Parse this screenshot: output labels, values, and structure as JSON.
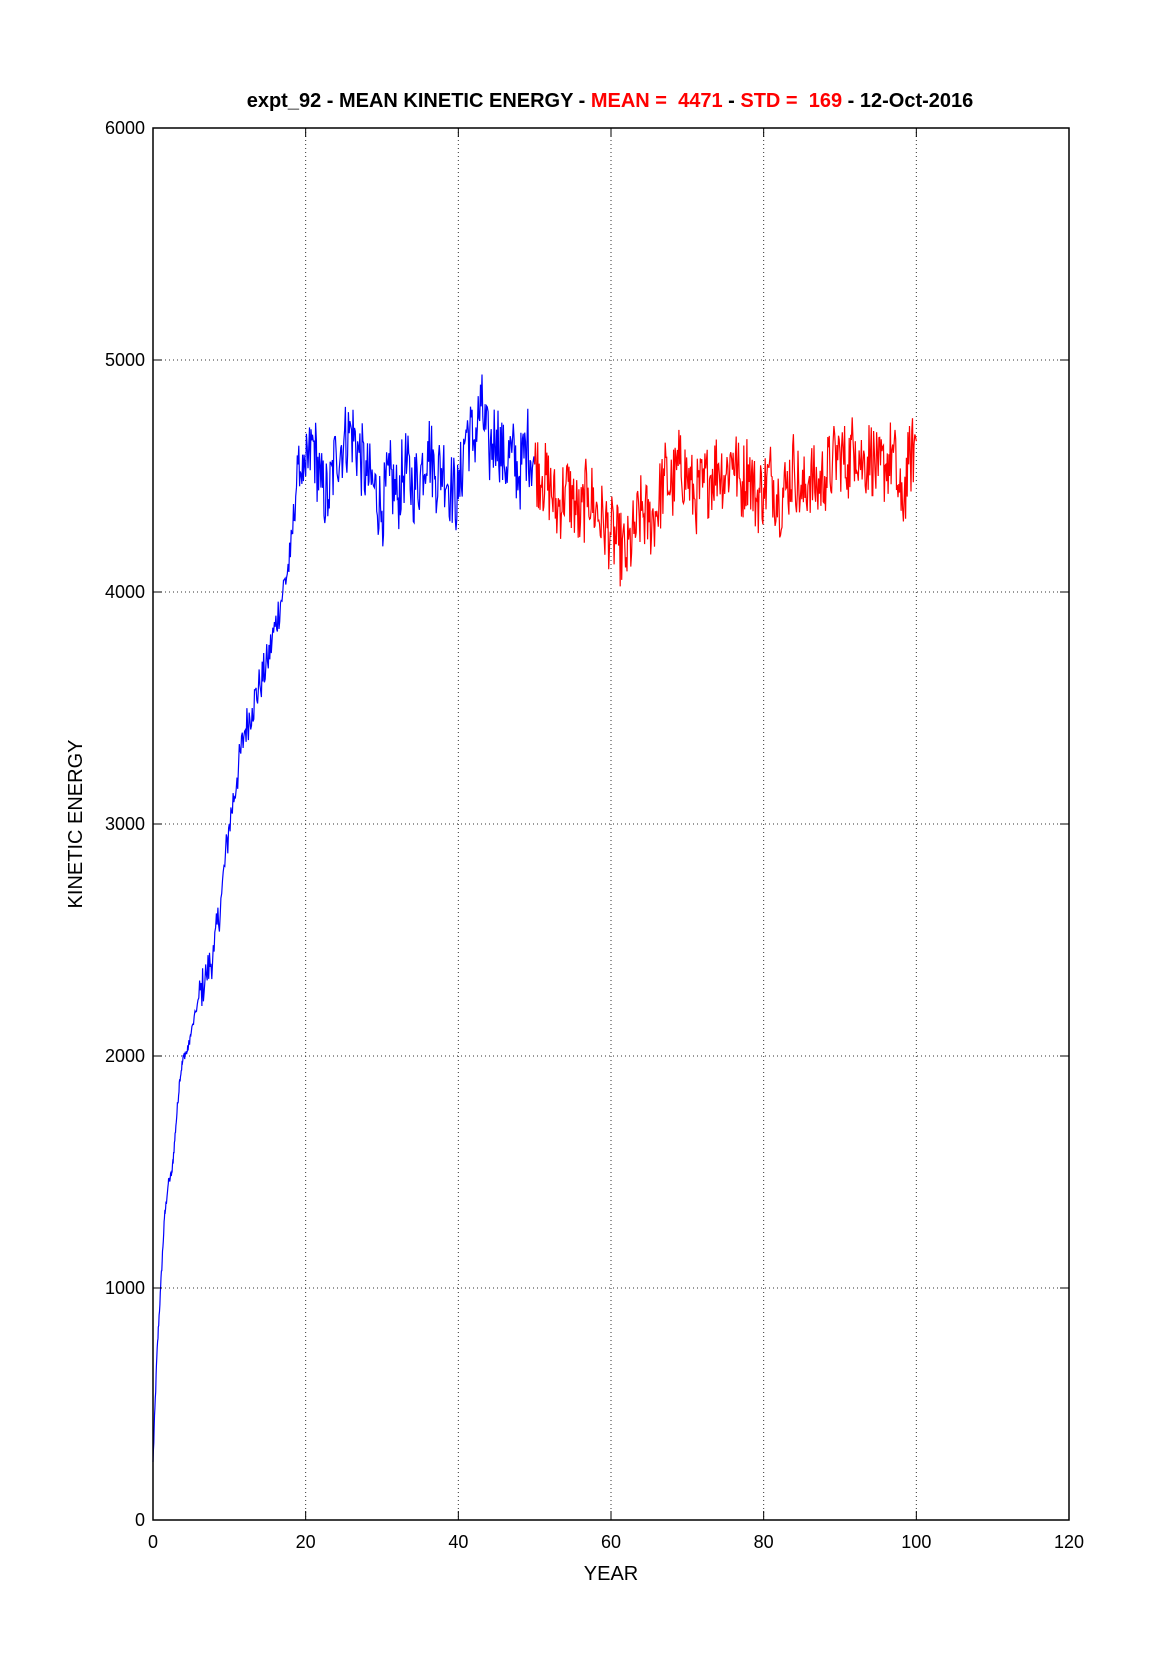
{
  "chart_data": {
    "type": "line",
    "title": {
      "parts": [
        {
          "text": "expt_92 - MEAN KINETIC ENERGY - ",
          "color": "#000000"
        },
        {
          "text": "MEAN =  4471",
          "color": "#ff0000"
        },
        {
          "text": " - ",
          "color": "#000000"
        },
        {
          "text": "STD =  169",
          "color": "#ff0000"
        },
        {
          "text": " - 12-Oct-2016",
          "color": "#000000"
        }
      ]
    },
    "xlabel": "YEAR",
    "ylabel": "KINETIC ENERGY",
    "xlim": [
      0,
      120
    ],
    "ylim": [
      0,
      6000
    ],
    "xticks": [
      0,
      20,
      40,
      60,
      80,
      100,
      120
    ],
    "yticks": [
      0,
      1000,
      2000,
      3000,
      4000,
      5000,
      6000
    ],
    "grid": true,
    "series": [
      {
        "color": "#0000ff",
        "x": [
          0,
          0.5,
          1,
          1.5,
          2,
          2.5,
          3,
          3.5,
          4,
          4.5,
          5,
          6,
          7,
          8,
          9,
          10,
          11,
          12,
          13,
          14,
          15,
          16,
          17,
          18,
          19,
          20,
          21,
          22,
          23,
          24,
          25,
          26,
          27,
          28,
          29,
          30,
          31,
          32,
          33,
          34,
          35,
          36,
          37,
          38,
          39,
          40,
          41,
          42,
          43,
          44,
          45,
          46,
          47,
          48,
          49,
          50
        ],
        "y": [
          250,
          700,
          1000,
          1300,
          1450,
          1500,
          1700,
          1900,
          2000,
          2020,
          2100,
          2250,
          2350,
          2450,
          2700,
          3000,
          3200,
          3400,
          3500,
          3600,
          3700,
          3850,
          4000,
          4150,
          4550,
          4500,
          4650,
          4450,
          4400,
          4600,
          4650,
          4700,
          4600,
          4500,
          4450,
          4350,
          4500,
          4400,
          4550,
          4450,
          4500,
          4650,
          4500,
          4550,
          4450,
          4400,
          4700,
          4650,
          4800,
          4600,
          4700,
          4550,
          4600,
          4500,
          4650,
          4550
        ]
      },
      {
        "color": "#ff0000",
        "x": [
          50,
          51,
          52,
          53,
          54,
          55,
          56,
          57,
          58,
          59,
          60,
          61,
          62,
          63,
          64,
          65,
          66,
          67,
          68,
          69,
          70,
          71,
          72,
          73,
          74,
          75,
          76,
          77,
          78,
          79,
          80,
          81,
          82,
          83,
          84,
          85,
          86,
          87,
          88,
          89,
          90,
          91,
          92,
          93,
          94,
          95,
          96,
          97,
          98,
          99,
          100
        ],
        "y": [
          4550,
          4500,
          4450,
          4350,
          4450,
          4400,
          4300,
          4450,
          4350,
          4300,
          4250,
          4200,
          4150,
          4250,
          4350,
          4300,
          4350,
          4500,
          4450,
          4550,
          4500,
          4400,
          4450,
          4500,
          4550,
          4500,
          4600,
          4450,
          4550,
          4400,
          4450,
          4500,
          4400,
          4450,
          4550,
          4400,
          4500,
          4450,
          4500,
          4550,
          4600,
          4550,
          4650,
          4550,
          4600,
          4500,
          4550,
          4600,
          4350,
          4550,
          4650
        ]
      }
    ]
  }
}
